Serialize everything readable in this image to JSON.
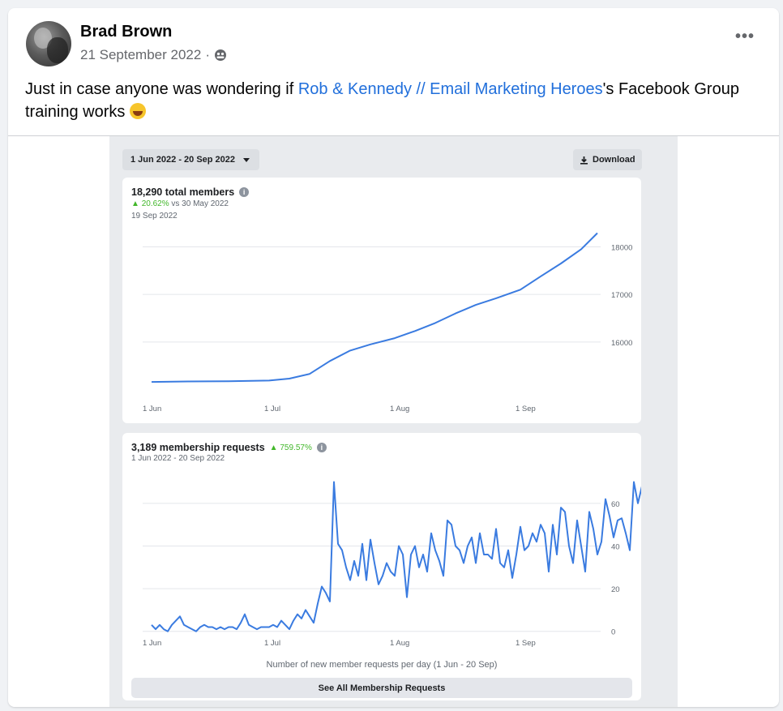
{
  "post": {
    "author": "Brad Brown",
    "date": "21 September 2022",
    "separator": "·",
    "audience_icon": "group-audience-icon",
    "more_icon": "more-horizontal-icon",
    "more_label": "•••",
    "text_before": "Just in case anyone was wondering if ",
    "link_text": "Rob & Kennedy // Email Marketing Heroes",
    "text_after": "'s Facebook Group training works",
    "emoji": "rolling-on-floor-laughing-emoji"
  },
  "insights": {
    "date_range": "1 Jun 2022 - 20 Sep 2022",
    "download_label": "Download",
    "download_icon": "download-icon"
  },
  "members_panel": {
    "title": "18,290 total members",
    "change_pct": "20.62%",
    "change_suffix": "vs 30 May 2022",
    "hover_date": "19 Sep 2022"
  },
  "requests_panel": {
    "title": "3,189 membership requests",
    "change_pct": "759.57%",
    "range": "1 Jun 2022 - 20 Sep 2022",
    "caption": "Number of new member requests per day (1 Jun - 20 Sep)",
    "button": "See All Membership Requests"
  },
  "colors": {
    "accent": "#216fdb",
    "line": "#3a7be0",
    "positive": "#42b72a"
  },
  "chart_data": [
    {
      "type": "line",
      "x_ticks": [
        "1 Jun",
        "1 Jul",
        "1 Aug",
        "1 Sep"
      ],
      "y_ticks": [
        16000,
        17000,
        18000
      ],
      "ylim": [
        14600,
        18400
      ],
      "grid": true,
      "x_start": "2022-06-01",
      "series": [
        {
          "x": [
            "2022-06-01",
            "2022-06-10",
            "2022-06-20",
            "2022-06-30",
            "2022-07-05",
            "2022-07-10",
            "2022-07-15",
            "2022-07-20",
            "2022-07-25",
            "2022-07-31",
            "2022-08-05",
            "2022-08-10",
            "2022-08-15",
            "2022-08-20",
            "2022-08-25",
            "2022-08-31",
            "2022-09-05",
            "2022-09-10",
            "2022-09-15",
            "2022-09-19"
          ],
          "y": [
            15160,
            15170,
            15175,
            15190,
            15230,
            15330,
            15600,
            15820,
            15950,
            16080,
            16230,
            16400,
            16600,
            16780,
            16920,
            17100,
            17380,
            17650,
            17950,
            18290
          ]
        }
      ]
    },
    {
      "type": "line",
      "x_ticks": [
        "1 Jun",
        "1 Jul",
        "1 Aug",
        "1 Sep"
      ],
      "y_ticks": [
        0,
        20,
        40,
        60
      ],
      "ylim": [
        -2,
        74
      ],
      "grid": true,
      "x_start": "2022-06-01",
      "series": [
        {
          "y": [
            3,
            1,
            3,
            1,
            0,
            3,
            5,
            7,
            3,
            2,
            1,
            0,
            2,
            3,
            2,
            2,
            1,
            2,
            1,
            2,
            2,
            1,
            4,
            8,
            3,
            2,
            1,
            2,
            2,
            2,
            3,
            2,
            5,
            3,
            1,
            5,
            8,
            6,
            10,
            7,
            4,
            13,
            21,
            18,
            14,
            70,
            41,
            38,
            30,
            24,
            33,
            26,
            41,
            24,
            43,
            32,
            22,
            26,
            32,
            28,
            26,
            40,
            36,
            16,
            36,
            40,
            30,
            36,
            28,
            46,
            38,
            33,
            26,
            52,
            50,
            40,
            38,
            32,
            40,
            44,
            32,
            46,
            36,
            36,
            34,
            48,
            32,
            30,
            38,
            25,
            36,
            49,
            38,
            40,
            46,
            42,
            50,
            46,
            28,
            50,
            36,
            58,
            56,
            40,
            32,
            52,
            40,
            28,
            56,
            48,
            36,
            42,
            62,
            54,
            44,
            52,
            53,
            46,
            38,
            70,
            60,
            68,
            48
          ]
        }
      ]
    }
  ]
}
